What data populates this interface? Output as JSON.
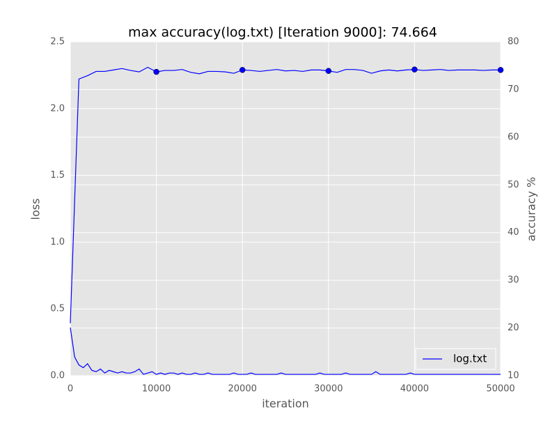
{
  "chart_data": {
    "type": "line",
    "title": "max accuracy(log.txt) [Iteration 9000]: 74.664",
    "xlabel": "iteration",
    "ylabel": "loss",
    "y2label": "accuracy %",
    "xlim": [
      0,
      50000
    ],
    "xticks": [
      0,
      10000,
      20000,
      30000,
      40000,
      50000
    ],
    "ylim": [
      0,
      2.5
    ],
    "yticks": [
      {
        "value": 0,
        "label": "0.0"
      },
      0.5,
      {
        "value": 1,
        "label": "1.0"
      },
      1.5,
      {
        "value": 2,
        "label": "2.0"
      },
      2.5
    ],
    "y2lim": [
      10,
      80
    ],
    "y2ticks": [
      10,
      20,
      30,
      40,
      50,
      60,
      70,
      80
    ],
    "grid": true,
    "legend": "lower right",
    "background": "#e5e5e5",
    "series": [
      {
        "name": "log.txt",
        "color": "#0000ff",
        "axis": "y",
        "x": [
          0,
          500,
          1000,
          1500,
          2000,
          2500,
          3000,
          3500,
          4000,
          4500,
          5000,
          5500,
          6000,
          6500,
          7000,
          7500,
          8000,
          8500,
          9000,
          9500,
          10000,
          10500,
          11000,
          11500,
          12000,
          12500,
          13000,
          13500,
          14000,
          14500,
          15000,
          15500,
          16000,
          16500,
          17000,
          17500,
          18000,
          18500,
          19000,
          19500,
          20000,
          20500,
          21000,
          21500,
          22000,
          22500,
          23000,
          23500,
          24000,
          24500,
          25000,
          25500,
          26000,
          26500,
          27000,
          27500,
          28000,
          28500,
          29000,
          29500,
          30000,
          30500,
          31000,
          31500,
          32000,
          32500,
          33000,
          33500,
          34000,
          34500,
          35000,
          35500,
          36000,
          36500,
          37000,
          37500,
          38000,
          38500,
          39000,
          39500,
          40000,
          40500,
          41000,
          41500,
          42000,
          42500,
          43000,
          43500,
          44000,
          44500,
          45000,
          45500,
          46000,
          46500,
          47000,
          47500,
          48000,
          48500,
          49000,
          49500,
          50000
        ],
        "values": [
          0.36,
          0.14,
          0.08,
          0.06,
          0.09,
          0.04,
          0.03,
          0.05,
          0.02,
          0.04,
          0.03,
          0.02,
          0.03,
          0.02,
          0.02,
          0.03,
          0.05,
          0.01,
          0.02,
          0.03,
          0.01,
          0.02,
          0.01,
          0.02,
          0.02,
          0.01,
          0.02,
          0.01,
          0.01,
          0.02,
          0.01,
          0.01,
          0.02,
          0.01,
          0.01,
          0.01,
          0.01,
          0.01,
          0.02,
          0.01,
          0.01,
          0.01,
          0.02,
          0.01,
          0.01,
          0.01,
          0.01,
          0.01,
          0.01,
          0.02,
          0.01,
          0.01,
          0.01,
          0.01,
          0.01,
          0.01,
          0.01,
          0.01,
          0.02,
          0.01,
          0.01,
          0.01,
          0.01,
          0.01,
          0.02,
          0.01,
          0.01,
          0.01,
          0.01,
          0.01,
          0.01,
          0.03,
          0.01,
          0.01,
          0.01,
          0.01,
          0.01,
          0.01,
          0.01,
          0.02,
          0.01,
          0.01,
          0.01,
          0.01,
          0.01,
          0.01,
          0.01,
          0.01,
          0.01,
          0.01,
          0.01,
          0.01,
          0.01,
          0.01,
          0.01,
          0.01,
          0.01,
          0.01,
          0.01,
          0.01,
          0.01
        ]
      },
      {
        "color": "#0000ff",
        "axis": "y2",
        "marker_every": 10,
        "x": [
          0,
          1000,
          2000,
          3000,
          4000,
          5000,
          6000,
          7000,
          8000,
          9000,
          10000,
          11000,
          12000,
          13000,
          14000,
          15000,
          16000,
          17000,
          18000,
          19000,
          20000,
          21000,
          22000,
          23000,
          24000,
          25000,
          26000,
          27000,
          28000,
          29000,
          30000,
          31000,
          32000,
          33000,
          34000,
          35000,
          36000,
          37000,
          38000,
          39000,
          40000,
          41000,
          42000,
          43000,
          44000,
          45000,
          46000,
          47000,
          48000,
          49000,
          50000
        ],
        "values": [
          21,
          72.2,
          72.9,
          73.8,
          73.8,
          74.1,
          74.4,
          74.0,
          73.7,
          74.664,
          73.7,
          74.0,
          74.0,
          74.2,
          73.6,
          73.3,
          73.8,
          73.8,
          73.7,
          73.4,
          74.1,
          74.0,
          73.8,
          74.0,
          74.2,
          73.9,
          74.0,
          73.8,
          74.1,
          74.1,
          73.9,
          73.6,
          74.2,
          74.2,
          74.0,
          73.4,
          73.9,
          74.1,
          73.9,
          74.1,
          74.2,
          74.0,
          74.1,
          74.2,
          74.0,
          74.1,
          74.1,
          74.1,
          74.0,
          74.1,
          74.1
        ]
      }
    ]
  }
}
